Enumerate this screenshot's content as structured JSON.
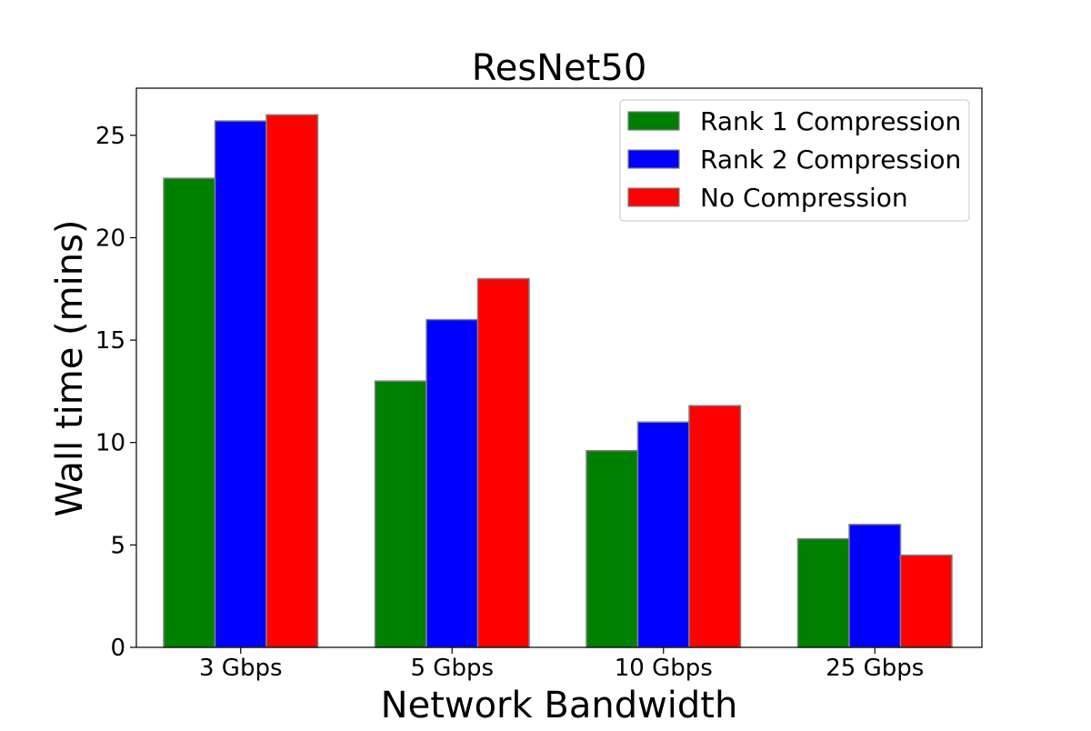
{
  "chart_data": {
    "type": "bar",
    "title": "ResNet50",
    "xlabel": "Network Bandwidth",
    "ylabel": "Wall time (mins)",
    "categories": [
      "3 Gbps",
      "5 Gbps",
      "10 Gbps",
      "25 Gbps"
    ],
    "ylim": [
      0,
      27.3
    ],
    "yticks": [
      0,
      5,
      10,
      15,
      20,
      25
    ],
    "ytick_labels": [
      "0",
      "5",
      "10",
      "15",
      "20",
      "25"
    ],
    "grid": false,
    "legend_position": "top-right",
    "series": [
      {
        "name": "Rank 1 Compression",
        "color": "#008000",
        "values": [
          22.9,
          13.0,
          9.6,
          5.3
        ]
      },
      {
        "name": "Rank 2 Compression",
        "color": "#0000ff",
        "values": [
          25.7,
          16.0,
          11.0,
          6.0
        ]
      },
      {
        "name": "No Compression",
        "color": "#ff0000",
        "values": [
          26.0,
          18.0,
          11.8,
          4.5
        ]
      }
    ]
  }
}
